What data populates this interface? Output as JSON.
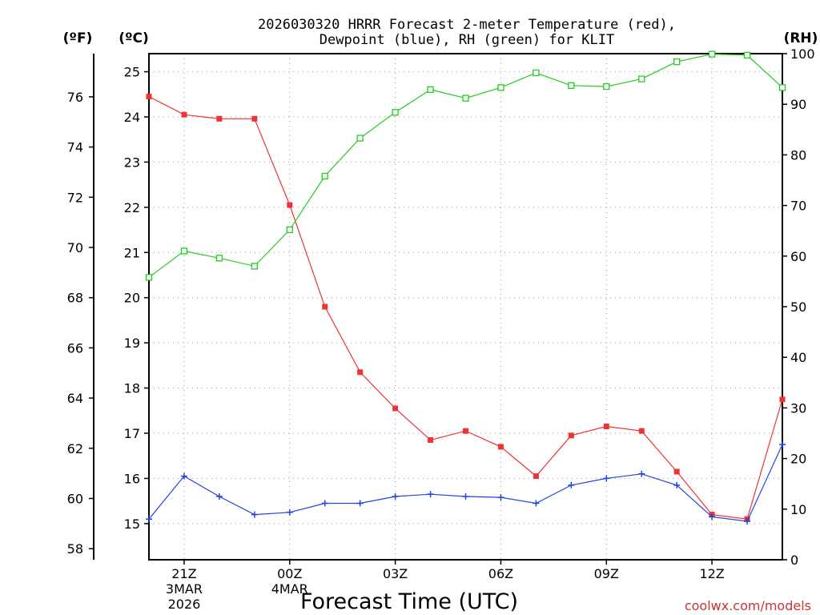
{
  "chart_data": {
    "type": "line",
    "title_line1": "2026030320 HRRR Forecast 2-meter Temperature (red),",
    "title_line2": "Dewpoint (blue), RH (green) for KLIT",
    "xlabel": "Forecast Time (UTC)",
    "credit": "coolwx.com/models",
    "axis_titles": {
      "fahrenheit": "(ºF)",
      "celsius": "(ºC)",
      "rh": "(RH)"
    },
    "celsius_range": [
      14.2,
      25.4
    ],
    "rh_range": [
      0,
      100
    ],
    "fahrenheit_ticks": [
      "58",
      "60",
      "62",
      "64",
      "66",
      "68",
      "70",
      "72",
      "74",
      "76"
    ],
    "celsius_ticks": [
      "15",
      "16",
      "17",
      "18",
      "19",
      "20",
      "21",
      "22",
      "23",
      "24",
      "25"
    ],
    "rh_ticks": [
      "0",
      "10",
      "20",
      "30",
      "40",
      "50",
      "60",
      "70",
      "80",
      "90",
      "100"
    ],
    "x_hours": [
      20,
      21,
      22,
      23,
      24,
      25,
      26,
      27,
      28,
      29,
      30,
      31,
      32,
      33,
      34,
      35,
      36,
      37,
      38
    ],
    "x_ticks": [
      {
        "hour": 21,
        "label": "21Z",
        "sub1": "3MAR",
        "sub2": "2026"
      },
      {
        "hour": 24,
        "label": "00Z",
        "sub1": "4MAR",
        "sub2": ""
      },
      {
        "hour": 27,
        "label": "03Z",
        "sub1": "",
        "sub2": ""
      },
      {
        "hour": 30,
        "label": "06Z",
        "sub1": "",
        "sub2": ""
      },
      {
        "hour": 33,
        "label": "09Z",
        "sub1": "",
        "sub2": ""
      },
      {
        "hour": 36,
        "label": "12Z",
        "sub1": "",
        "sub2": ""
      }
    ],
    "series": [
      {
        "name": "2-meter Temperature",
        "axis": "celsius",
        "color": "#ee3333",
        "marker": "filled-square",
        "values": [
          24.45,
          24.05,
          23.96,
          23.96,
          22.05,
          19.8,
          18.35,
          17.55,
          16.85,
          17.05,
          16.7,
          16.05,
          16.95,
          17.15,
          17.05,
          16.15,
          15.2,
          15.1,
          17.75
        ]
      },
      {
        "name": "Dewpoint",
        "axis": "celsius",
        "color": "#2244dd",
        "marker": "plus",
        "values": [
          15.1,
          16.05,
          15.6,
          15.2,
          15.25,
          15.45,
          15.45,
          15.6,
          15.65,
          15.6,
          15.58,
          15.45,
          15.85,
          16.0,
          16.1,
          15.85,
          15.15,
          15.05,
          16.75
        ]
      },
      {
        "name": "RH",
        "axis": "rh",
        "color": "#22cc22",
        "marker": "open-square",
        "values": [
          55.8,
          61.0,
          59.6,
          58.0,
          65.2,
          75.8,
          83.3,
          88.4,
          92.9,
          91.2,
          93.3,
          96.2,
          93.7,
          93.5,
          95.0,
          98.4,
          99.9,
          99.7,
          93.3
        ]
      }
    ]
  }
}
